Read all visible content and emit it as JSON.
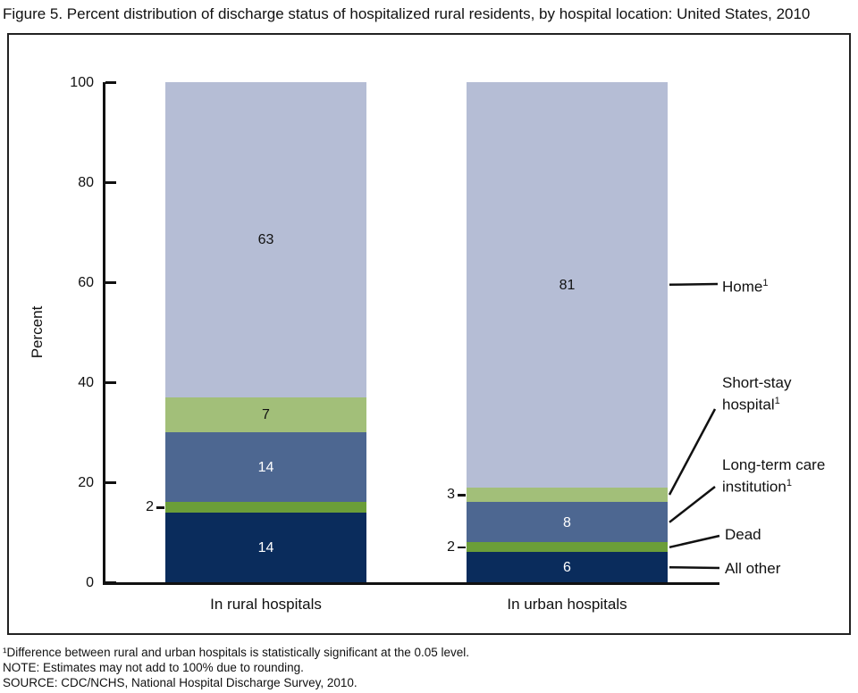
{
  "chart_data": {
    "type": "bar",
    "stacked": true,
    "title": "Figure 5. Percent distribution of discharge status of hospitalized rural residents, by hospital location: United States, 2010",
    "categories": [
      "In rural hospitals",
      "In urban hospitals"
    ],
    "series": [
      {
        "name": "All other",
        "color": "#0a2c5c",
        "values": [
          14,
          6
        ],
        "value_label_styles": [
          "inside-light",
          "inside-light"
        ]
      },
      {
        "name": "Dead",
        "color": "#6b9e38",
        "values": [
          2,
          2
        ],
        "value_label_styles": [
          "outside-left",
          "outside-left"
        ]
      },
      {
        "name": "Long-term care institution",
        "color": "#4d6791",
        "values": [
          14,
          8
        ],
        "value_label_styles": [
          "inside-light",
          "inside-light"
        ]
      },
      {
        "name": "Short-stay hospital",
        "color": "#a2bf79",
        "values": [
          7,
          3
        ],
        "value_label_styles": [
          "inside-dark",
          "outside-left"
        ]
      },
      {
        "name": "Home",
        "color": "#b5bdd5",
        "values": [
          63,
          81
        ],
        "value_label_styles": [
          "inside-dark",
          "inside-dark"
        ]
      }
    ],
    "ylabel": "Percent",
    "yticks": [
      0,
      20,
      40,
      60,
      80,
      100
    ],
    "ylim": [
      0,
      100
    ],
    "grid": false,
    "legend_position": "right",
    "legend": [
      {
        "lines": [
          "Home"
        ],
        "sup": "1",
        "series_index": 4
      },
      {
        "lines": [
          "Short-stay",
          "hospital"
        ],
        "sup": "1",
        "series_index": 3
      },
      {
        "lines": [
          "Long-term care",
          "institution"
        ],
        "sup": "1",
        "series_index": 2
      },
      {
        "lines": [
          "Dead"
        ],
        "sup": "",
        "series_index": 1
      },
      {
        "lines": [
          "All other"
        ],
        "sup": "",
        "series_index": 0
      }
    ]
  },
  "footnotes": [
    "¹Difference between rural and urban hospitals is statistically significant at the 0.05 level.",
    "NOTE: Estimates may not add to 100% due to rounding.",
    "SOURCE: CDC/NCHS, National Hospital Discharge Survey, 2010."
  ]
}
